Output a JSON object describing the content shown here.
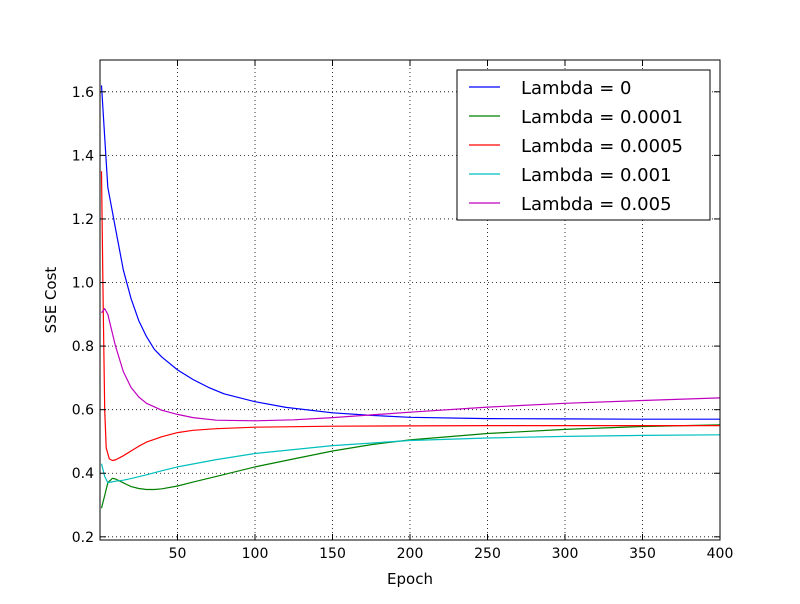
{
  "chart_data": {
    "type": "line",
    "title": "",
    "xlabel": "Epoch",
    "ylabel": "SSE Cost",
    "xlim": [
      0,
      400
    ],
    "ylim": [
      0.19,
      1.7
    ],
    "xticks": [
      50,
      100,
      150,
      200,
      250,
      300,
      350,
      400
    ],
    "xtick_labels": [
      "50",
      "100",
      "150",
      "200",
      "250",
      "300",
      "350",
      "400"
    ],
    "yticks": [
      0.2,
      0.4,
      0.6,
      0.8,
      1.0,
      1.2,
      1.4,
      1.6
    ],
    "ytick_labels": [
      "0.2",
      "0.4",
      "0.6",
      "0.8",
      "1.0",
      "1.2",
      "1.4",
      "1.6"
    ],
    "grid": true,
    "legend_position": "top-right",
    "series": [
      {
        "name": "Lambda = 0",
        "color": "#0000ff",
        "x": [
          1,
          5,
          10,
          15,
          20,
          25,
          30,
          35,
          40,
          50,
          60,
          70,
          80,
          100,
          120,
          150,
          175,
          200,
          250,
          300,
          350,
          400
        ],
        "y": [
          1.62,
          1.3,
          1.17,
          1.04,
          0.95,
          0.88,
          0.83,
          0.79,
          0.765,
          0.725,
          0.695,
          0.67,
          0.65,
          0.625,
          0.607,
          0.59,
          0.582,
          0.576,
          0.572,
          0.571,
          0.57,
          0.57
        ]
      },
      {
        "name": "Lambda = 0.0001",
        "color": "#008000",
        "x": [
          1,
          3,
          5,
          8,
          10,
          15,
          20,
          25,
          30,
          35,
          40,
          50,
          60,
          75,
          100,
          125,
          150,
          175,
          200,
          250,
          300,
          350,
          400
        ],
        "y": [
          0.29,
          0.33,
          0.37,
          0.384,
          0.382,
          0.37,
          0.358,
          0.352,
          0.349,
          0.349,
          0.351,
          0.36,
          0.372,
          0.39,
          0.42,
          0.445,
          0.47,
          0.49,
          0.505,
          0.525,
          0.538,
          0.547,
          0.552
        ]
      },
      {
        "name": "Lambda = 0.0005",
        "color": "#ff0000",
        "x": [
          1,
          2,
          3,
          4,
          6,
          8,
          10,
          15,
          20,
          25,
          30,
          40,
          50,
          60,
          75,
          100,
          150,
          200,
          250,
          300,
          350,
          400
        ],
        "y": [
          1.35,
          0.95,
          0.6,
          0.48,
          0.445,
          0.44,
          0.442,
          0.455,
          0.47,
          0.485,
          0.498,
          0.515,
          0.528,
          0.535,
          0.54,
          0.545,
          0.548,
          0.549,
          0.55,
          0.55,
          0.55,
          0.55
        ]
      },
      {
        "name": "Lambda = 0.001",
        "color": "#00bfbf",
        "x": [
          1,
          3,
          5,
          7,
          10,
          15,
          20,
          30,
          40,
          50,
          75,
          100,
          150,
          200,
          250,
          300,
          350,
          400
        ],
        "y": [
          0.43,
          0.39,
          0.37,
          0.372,
          0.375,
          0.378,
          0.383,
          0.395,
          0.408,
          0.42,
          0.443,
          0.462,
          0.487,
          0.503,
          0.511,
          0.516,
          0.519,
          0.521
        ]
      },
      {
        "name": "Lambda = 0.005",
        "color": "#bf00bf",
        "x": [
          1,
          3,
          5,
          10,
          15,
          20,
          25,
          30,
          40,
          50,
          60,
          75,
          100,
          125,
          150,
          200,
          250,
          300,
          350,
          400
        ],
        "y": [
          0.905,
          0.918,
          0.9,
          0.8,
          0.72,
          0.67,
          0.64,
          0.62,
          0.598,
          0.585,
          0.575,
          0.567,
          0.565,
          0.568,
          0.575,
          0.592,
          0.608,
          0.62,
          0.629,
          0.637
        ]
      }
    ]
  }
}
